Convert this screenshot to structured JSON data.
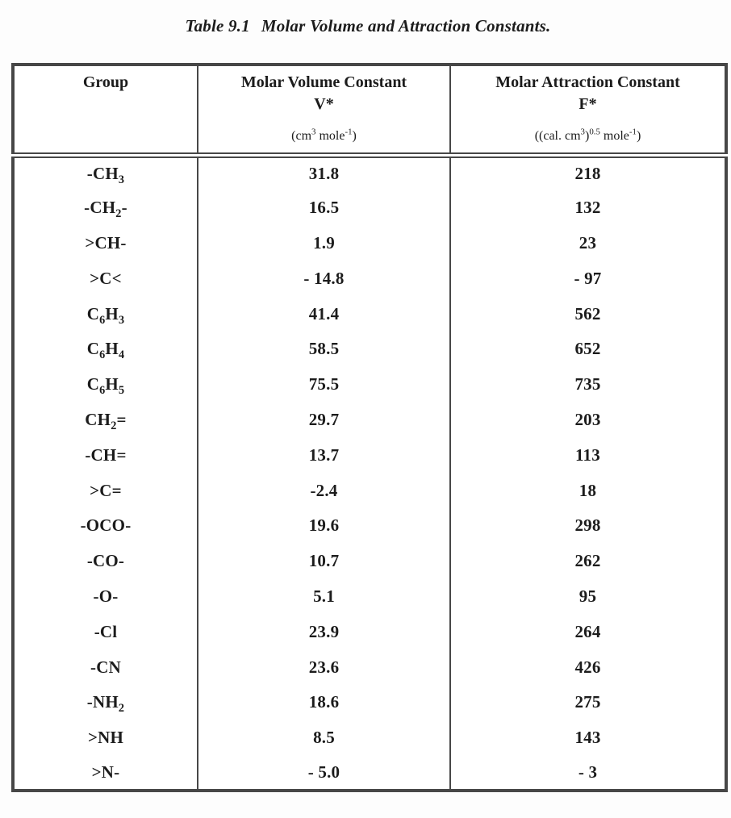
{
  "colors": {
    "text": "#1c1c1c",
    "border": "#474747",
    "page_background": "#fdfdfd"
  },
  "caption": {
    "label": "Table 9.1",
    "text": "Molar Volume and Attraction Constants."
  },
  "table": {
    "columns": [
      {
        "label": "Group",
        "symbol": "",
        "units": ""
      },
      {
        "label": "Molar Volume Constant",
        "symbol": "V*",
        "units": "(cm^{3} mole^{-1})"
      },
      {
        "label": "Molar Attraction Constant",
        "symbol": "F*",
        "units": "((cal. cm^{3})^{0.5} mole^{-1})"
      }
    ],
    "rows": [
      {
        "group": "-CH_{3}",
        "v": "31.8",
        "f": "218"
      },
      {
        "group": "-CH_{2}-",
        "v": "16.5",
        "f": "132"
      },
      {
        "group": ">CH-",
        "v": "1.9",
        "f": "23"
      },
      {
        "group": ">C<",
        "v": "- 14.8",
        "f": "- 97"
      },
      {
        "group": "C_{6}H_{3}",
        "v": "41.4",
        "f": "562"
      },
      {
        "group": "C_{6}H_{4}",
        "v": "58.5",
        "f": "652"
      },
      {
        "group": "C_{6}H_{5}",
        "v": "75.5",
        "f": "735"
      },
      {
        "group": "CH_{2}=",
        "v": "29.7",
        "f": "203"
      },
      {
        "group": "-CH=",
        "v": "13.7",
        "f": "113"
      },
      {
        "group": ">C=",
        "v": "-2.4",
        "f": "18"
      },
      {
        "group": "-OCO-",
        "v": "19.6",
        "f": "298"
      },
      {
        "group": "-CO-",
        "v": "10.7",
        "f": "262"
      },
      {
        "group": "-O-",
        "v": "5.1",
        "f": "95"
      },
      {
        "group": "-Cl",
        "v": "23.9",
        "f": "264"
      },
      {
        "group": "-CN",
        "v": "23.6",
        "f": "426"
      },
      {
        "group": "-NH_{2}",
        "v": "18.6",
        "f": "275"
      },
      {
        "group": ">NH",
        "v": "8.5",
        "f": "143"
      },
      {
        "group": ">N-",
        "v": "- 5.0",
        "f": "- 3"
      }
    ]
  }
}
